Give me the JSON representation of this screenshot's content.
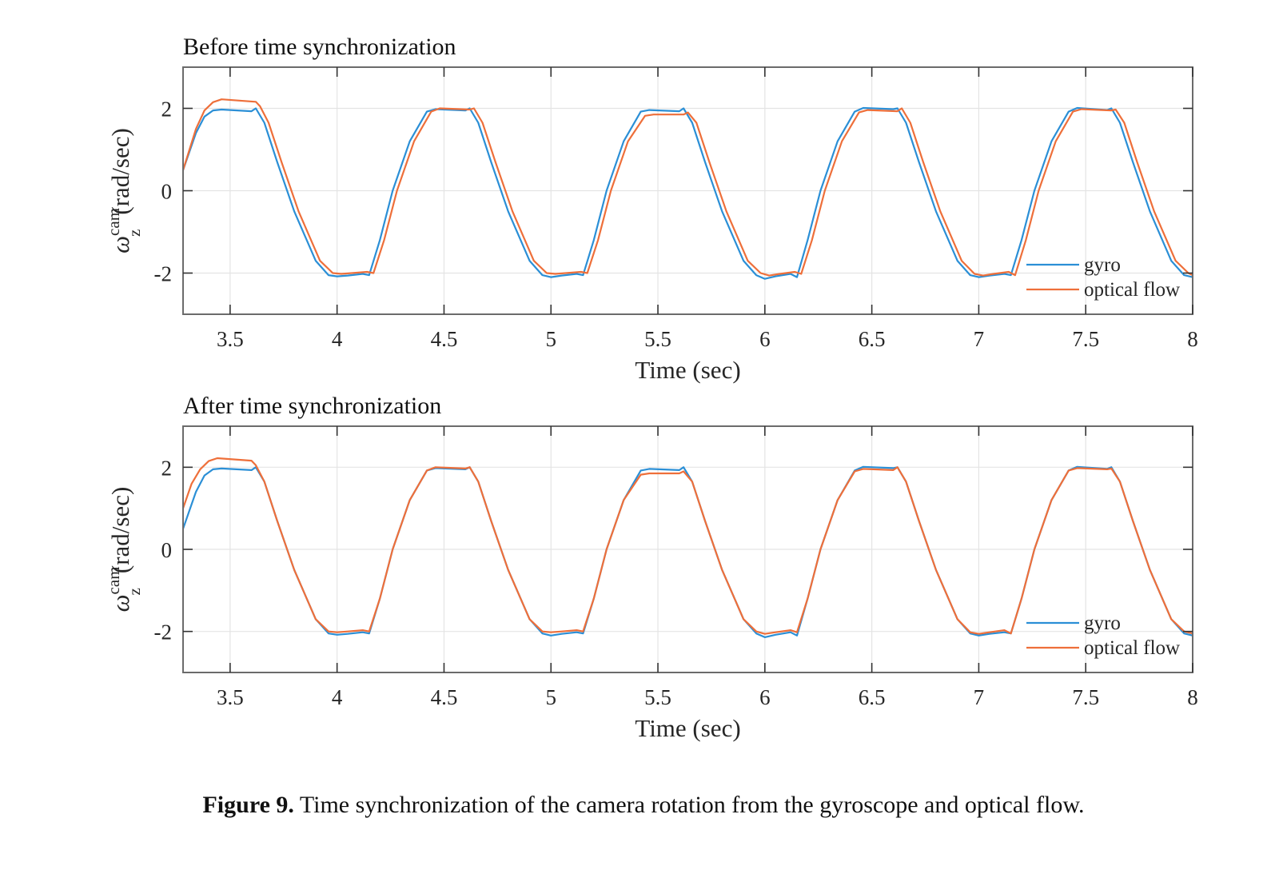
{
  "colors": {
    "gyro": "#2b8fd6",
    "optical_flow": "#ee6f3a",
    "grid": "#e4e4e4",
    "axis": "#6b6b6b"
  },
  "caption": {
    "label": "Figure 9.",
    "text": " Time synchronization of the camera rotation from the gyroscope and optical flow."
  },
  "chart_data": [
    {
      "type": "line",
      "title": "Before time synchronization",
      "xlabel": "Time (sec)",
      "ylabel": "(rad/sec)",
      "ylabel_symbol": "ω",
      "ylabel_sub": "z",
      "ylabel_sup": "cam",
      "xlim": [
        3.28,
        8.0
      ],
      "ylim": [
        -3,
        3
      ],
      "xticks": [
        3.5,
        4,
        4.5,
        5,
        5.5,
        6,
        6.5,
        7,
        7.5,
        8
      ],
      "xtick_labels": [
        "3.5",
        "4",
        "4.5",
        "5",
        "5.5",
        "6",
        "6.5",
        "7",
        "7.5",
        "8"
      ],
      "yticks": [
        -2,
        0,
        2
      ],
      "ytick_labels": [
        "-2",
        "0",
        "2"
      ],
      "grid": true,
      "legend": "bottom-right",
      "series": [
        {
          "name": "gyro",
          "color": "#2b8fd6",
          "x": [
            3.28,
            3.34,
            3.38,
            3.42,
            3.46,
            3.6,
            3.62,
            3.66,
            3.72,
            3.8,
            3.9,
            3.96,
            4.0,
            4.05,
            4.12,
            4.15,
            4.2,
            4.26,
            4.34,
            4.42,
            4.46,
            4.6,
            4.62,
            4.66,
            4.72,
            4.8,
            4.9,
            4.96,
            5.0,
            5.05,
            5.12,
            5.15,
            5.2,
            5.26,
            5.34,
            5.42,
            5.46,
            5.6,
            5.62,
            5.66,
            5.72,
            5.8,
            5.9,
            5.96,
            6.0,
            6.05,
            6.12,
            6.15,
            6.2,
            6.26,
            6.34,
            6.42,
            6.46,
            6.6,
            6.62,
            6.66,
            6.72,
            6.8,
            6.9,
            6.96,
            7.0,
            7.05,
            7.12,
            7.15,
            7.2,
            7.26,
            7.34,
            7.42,
            7.46,
            7.6,
            7.62,
            7.66,
            7.72,
            7.8,
            7.9,
            7.96,
            8.0
          ],
          "y": [
            0.5,
            1.4,
            1.8,
            1.95,
            1.97,
            1.93,
            2.0,
            1.65,
            0.7,
            -0.5,
            -1.7,
            -2.05,
            -2.08,
            -2.06,
            -2.02,
            -2.05,
            -1.2,
            0.0,
            1.2,
            1.92,
            1.98,
            1.95,
            2.0,
            1.65,
            0.7,
            -0.5,
            -1.7,
            -2.05,
            -2.1,
            -2.06,
            -2.02,
            -2.05,
            -1.2,
            0.0,
            1.2,
            1.92,
            1.96,
            1.93,
            2.0,
            1.65,
            0.7,
            -0.5,
            -1.7,
            -2.05,
            -2.14,
            -2.08,
            -2.02,
            -2.1,
            -1.2,
            0.0,
            1.2,
            1.92,
            2.01,
            1.98,
            2.0,
            1.65,
            0.7,
            -0.5,
            -1.7,
            -2.05,
            -2.1,
            -2.06,
            -2.02,
            -2.05,
            -1.2,
            0.0,
            1.2,
            1.92,
            2.01,
            1.96,
            2.0,
            1.65,
            0.7,
            -0.5,
            -1.7,
            -2.05,
            -2.1
          ]
        },
        {
          "name": "optical flow",
          "color": "#ee6f3a",
          "x": [
            3.28,
            3.34,
            3.38,
            3.42,
            3.46,
            3.62,
            3.64,
            3.68,
            3.74,
            3.82,
            3.92,
            3.98,
            4.02,
            4.07,
            4.14,
            4.17,
            4.22,
            4.28,
            4.36,
            4.44,
            4.48,
            4.62,
            4.64,
            4.68,
            4.74,
            4.82,
            4.92,
            4.98,
            5.02,
            5.07,
            5.14,
            5.17,
            5.22,
            5.28,
            5.36,
            5.44,
            5.48,
            5.62,
            5.64,
            5.68,
            5.74,
            5.82,
            5.92,
            5.98,
            6.02,
            6.07,
            6.14,
            6.17,
            6.22,
            6.28,
            6.36,
            6.44,
            6.48,
            6.62,
            6.64,
            6.68,
            6.74,
            6.82,
            6.92,
            6.98,
            7.02,
            7.07,
            7.14,
            7.17,
            7.22,
            7.28,
            7.36,
            7.44,
            7.48,
            7.62,
            7.64,
            7.68,
            7.74,
            7.82,
            7.92,
            7.98,
            8.0
          ],
          "y": [
            0.5,
            1.5,
            1.95,
            2.15,
            2.22,
            2.16,
            2.05,
            1.65,
            0.7,
            -0.5,
            -1.7,
            -2.0,
            -2.02,
            -2.0,
            -1.97,
            -2.0,
            -1.2,
            0.0,
            1.2,
            1.92,
            2.0,
            1.97,
            2.0,
            1.65,
            0.7,
            -0.5,
            -1.7,
            -2.0,
            -2.02,
            -2.0,
            -1.97,
            -2.0,
            -1.2,
            0.0,
            1.2,
            1.82,
            1.85,
            1.85,
            1.9,
            1.65,
            0.7,
            -0.5,
            -1.7,
            -2.0,
            -2.06,
            -2.02,
            -1.97,
            -2.02,
            -1.2,
            0.0,
            1.2,
            1.9,
            1.96,
            1.93,
            2.0,
            1.65,
            0.7,
            -0.5,
            -1.7,
            -2.02,
            -2.06,
            -2.02,
            -1.97,
            -2.05,
            -1.2,
            0.0,
            1.2,
            1.92,
            1.98,
            1.95,
            1.97,
            1.65,
            0.7,
            -0.5,
            -1.7,
            -2.0,
            -2.05
          ]
        }
      ]
    },
    {
      "type": "line",
      "title": "After time synchronization",
      "xlabel": "Time (sec)",
      "ylabel": "(rad/sec)",
      "ylabel_symbol": "ω",
      "ylabel_sub": "z",
      "ylabel_sup": "cam",
      "xlim": [
        3.28,
        8.0
      ],
      "ylim": [
        -3,
        3
      ],
      "xticks": [
        3.5,
        4,
        4.5,
        5,
        5.5,
        6,
        6.5,
        7,
        7.5,
        8
      ],
      "xtick_labels": [
        "3.5",
        "4",
        "4.5",
        "5",
        "5.5",
        "6",
        "6.5",
        "7",
        "7.5",
        "8"
      ],
      "yticks": [
        -2,
        0,
        2
      ],
      "ytick_labels": [
        "-2",
        "0",
        "2"
      ],
      "grid": true,
      "legend": "bottom-right",
      "series": [
        {
          "name": "gyro",
          "color": "#2b8fd6",
          "x": [
            3.28,
            3.34,
            3.38,
            3.42,
            3.46,
            3.6,
            3.62,
            3.66,
            3.72,
            3.8,
            3.9,
            3.96,
            4.0,
            4.05,
            4.12,
            4.15,
            4.2,
            4.26,
            4.34,
            4.42,
            4.46,
            4.6,
            4.62,
            4.66,
            4.72,
            4.8,
            4.9,
            4.96,
            5.0,
            5.05,
            5.12,
            5.15,
            5.2,
            5.26,
            5.34,
            5.42,
            5.46,
            5.6,
            5.62,
            5.66,
            5.72,
            5.8,
            5.9,
            5.96,
            6.0,
            6.05,
            6.12,
            6.15,
            6.2,
            6.26,
            6.34,
            6.42,
            6.46,
            6.6,
            6.62,
            6.66,
            6.72,
            6.8,
            6.9,
            6.96,
            7.0,
            7.05,
            7.12,
            7.15,
            7.2,
            7.26,
            7.34,
            7.42,
            7.46,
            7.6,
            7.62,
            7.66,
            7.72,
            7.8,
            7.9,
            7.96,
            8.0
          ],
          "y": [
            0.5,
            1.4,
            1.8,
            1.95,
            1.97,
            1.93,
            2.0,
            1.65,
            0.7,
            -0.5,
            -1.7,
            -2.05,
            -2.08,
            -2.06,
            -2.02,
            -2.05,
            -1.2,
            0.0,
            1.2,
            1.92,
            1.98,
            1.95,
            2.0,
            1.65,
            0.7,
            -0.5,
            -1.7,
            -2.05,
            -2.1,
            -2.06,
            -2.02,
            -2.05,
            -1.2,
            0.0,
            1.2,
            1.92,
            1.96,
            1.93,
            2.0,
            1.65,
            0.7,
            -0.5,
            -1.7,
            -2.05,
            -2.14,
            -2.08,
            -2.02,
            -2.1,
            -1.2,
            0.0,
            1.2,
            1.92,
            2.01,
            1.98,
            2.0,
            1.65,
            0.7,
            -0.5,
            -1.7,
            -2.05,
            -2.1,
            -2.06,
            -2.02,
            -2.05,
            -1.2,
            0.0,
            1.2,
            1.92,
            2.01,
            1.96,
            2.0,
            1.65,
            0.7,
            -0.5,
            -1.7,
            -2.05,
            -2.1
          ]
        },
        {
          "name": "optical flow",
          "color": "#ee6f3a",
          "x": [
            3.28,
            3.32,
            3.36,
            3.4,
            3.44,
            3.6,
            3.62,
            3.66,
            3.72,
            3.8,
            3.9,
            3.96,
            4.0,
            4.05,
            4.12,
            4.15,
            4.2,
            4.26,
            4.34,
            4.42,
            4.46,
            4.6,
            4.62,
            4.66,
            4.72,
            4.8,
            4.9,
            4.96,
            5.0,
            5.05,
            5.12,
            5.15,
            5.2,
            5.26,
            5.34,
            5.42,
            5.46,
            5.6,
            5.62,
            5.66,
            5.72,
            5.8,
            5.9,
            5.96,
            6.0,
            6.05,
            6.12,
            6.15,
            6.2,
            6.26,
            6.34,
            6.42,
            6.46,
            6.6,
            6.62,
            6.66,
            6.72,
            6.8,
            6.9,
            6.96,
            7.0,
            7.05,
            7.12,
            7.15,
            7.2,
            7.26,
            7.34,
            7.42,
            7.46,
            7.6,
            7.62,
            7.66,
            7.72,
            7.8,
            7.9,
            7.96,
            8.0
          ],
          "y": [
            1.0,
            1.6,
            1.95,
            2.15,
            2.22,
            2.16,
            2.05,
            1.65,
            0.7,
            -0.5,
            -1.7,
            -2.0,
            -2.02,
            -2.0,
            -1.97,
            -2.0,
            -1.2,
            0.0,
            1.2,
            1.92,
            2.0,
            1.97,
            2.0,
            1.65,
            0.7,
            -0.5,
            -1.7,
            -2.0,
            -2.02,
            -2.0,
            -1.97,
            -2.0,
            -1.2,
            0.0,
            1.2,
            1.82,
            1.85,
            1.85,
            1.9,
            1.65,
            0.7,
            -0.5,
            -1.7,
            -2.0,
            -2.06,
            -2.02,
            -1.97,
            -2.02,
            -1.2,
            0.0,
            1.2,
            1.9,
            1.96,
            1.93,
            2.0,
            1.65,
            0.7,
            -0.5,
            -1.7,
            -2.02,
            -2.06,
            -2.02,
            -1.97,
            -2.05,
            -1.2,
            0.0,
            1.2,
            1.92,
            1.98,
            1.95,
            1.97,
            1.65,
            0.7,
            -0.5,
            -1.7,
            -2.0,
            -2.05
          ]
        }
      ]
    }
  ]
}
